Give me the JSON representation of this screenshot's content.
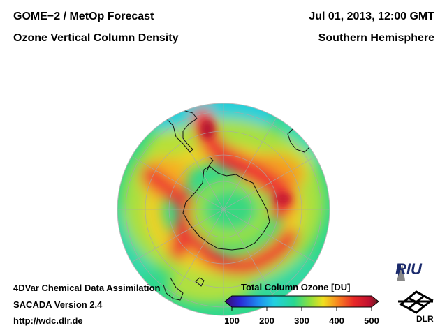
{
  "header": {
    "left_line1": "GOME−2 / MetOp Forecast",
    "left_line2": "Ozone Vertical Column Density",
    "right_line1": "Jul 01, 2013, 12:00 GMT",
    "right_line2": "Southern Hemisphere"
  },
  "footer": {
    "line1": "4DVar Chemical Data Assimilation",
    "line2": "SACADA Version 2.4",
    "line3": "http://wdc.dlr.de"
  },
  "colorbar": {
    "title": "Total Column Ozone [DU]",
    "min": 100,
    "max": 500,
    "ticks": [
      "100",
      "200",
      "300",
      "400",
      "500"
    ],
    "colors": [
      "#3a0a6e",
      "#2a2ad8",
      "#1e8ef0",
      "#22d0e0",
      "#28d890",
      "#8ae040",
      "#f0e020",
      "#f88020",
      "#e82828",
      "#c01030",
      "#5a2020"
    ]
  },
  "logos": {
    "riu": "RIU",
    "dlr": "DLR"
  },
  "map": {
    "projection": "orthographic, south polar",
    "background_level_du": 300
  }
}
